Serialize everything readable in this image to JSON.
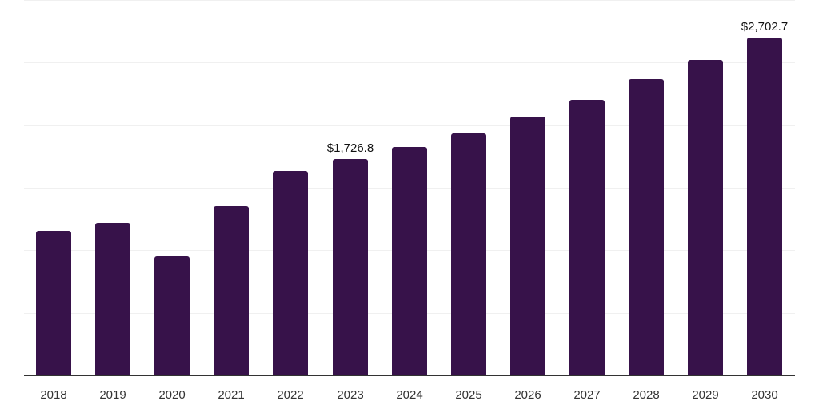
{
  "chart_data": {
    "type": "bar",
    "title": "",
    "xlabel": "",
    "ylabel": "",
    "categories": [
      "2018",
      "2019",
      "2020",
      "2021",
      "2022",
      "2023",
      "2024",
      "2025",
      "2026",
      "2027",
      "2028",
      "2029",
      "2030"
    ],
    "values": [
      1157,
      1221,
      952,
      1355,
      1636,
      1726.8,
      1828,
      1937,
      2065,
      2199,
      2365,
      2519,
      2702.7
    ],
    "ylim": [
      0,
      3000
    ],
    "gridlines": [
      0,
      500,
      1000,
      1500,
      2000,
      2500,
      3000
    ],
    "grid": true,
    "y_tick_labels_visible": false,
    "bar_color": "#37124a",
    "annotations": [
      {
        "category": "2023",
        "label": "$1,726.8"
      },
      {
        "category": "2030",
        "label": "$2,702.7"
      }
    ],
    "legend": null
  }
}
